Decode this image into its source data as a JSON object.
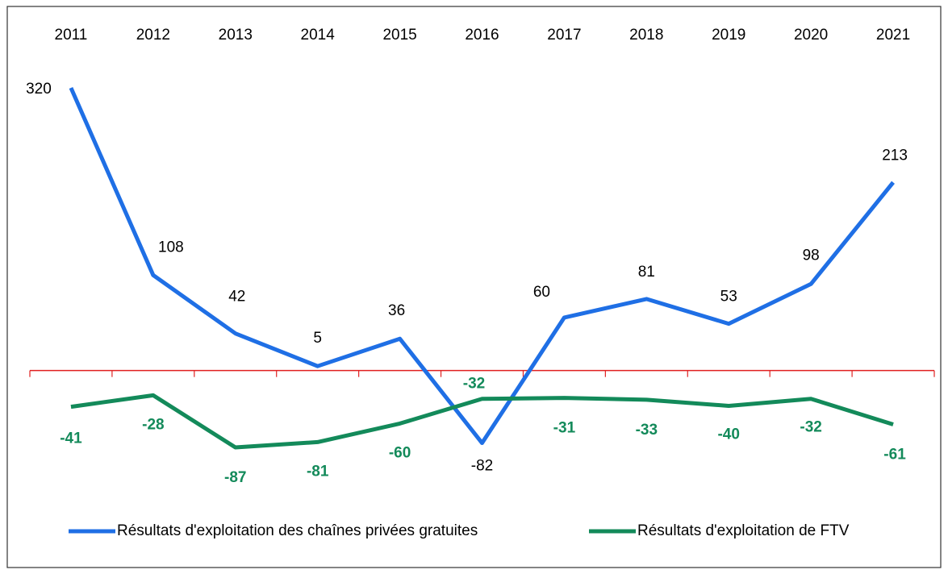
{
  "chart_data": {
    "type": "line",
    "categories": [
      "2011",
      "2012",
      "2013",
      "2014",
      "2015",
      "2016",
      "2017",
      "2018",
      "2019",
      "2020",
      "2021"
    ],
    "series": [
      {
        "name": "Résultats d'exploitation des chaînes privées gratuites",
        "color": "#1f6fe5",
        "values": [
          320,
          108,
          42,
          5,
          36,
          -82,
          60,
          81,
          53,
          98,
          213
        ]
      },
      {
        "name": "Résultats d'exploitation de FTV",
        "color": "#138a5a",
        "values": [
          -41,
          -28,
          -87,
          -81,
          -60,
          -32,
          -31,
          -33,
          -40,
          -32,
          -61
        ]
      }
    ],
    "zero_line_color": "#e02020"
  }
}
